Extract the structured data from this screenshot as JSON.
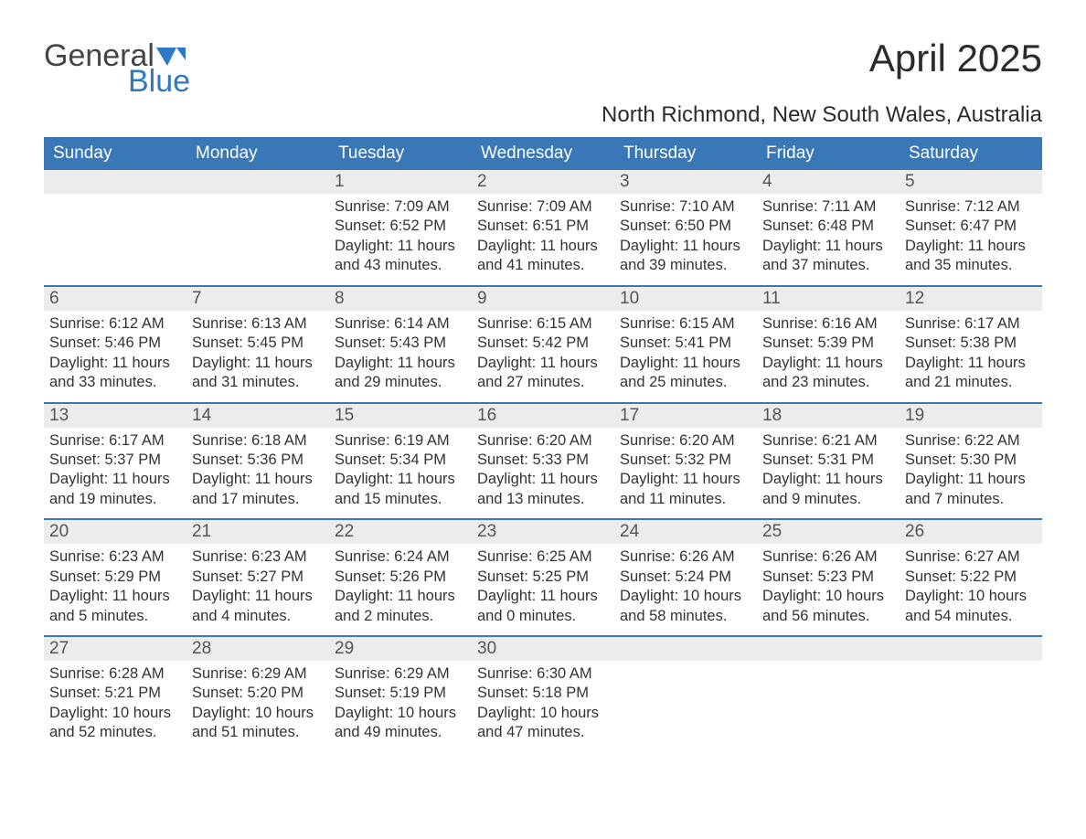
{
  "logo": {
    "general": "General",
    "blue": "Blue"
  },
  "title": "April 2025",
  "subtitle": "North Richmond, New South Wales, Australia",
  "dayNames": [
    "Sunday",
    "Monday",
    "Tuesday",
    "Wednesday",
    "Thursday",
    "Friday",
    "Saturday"
  ],
  "colors": {
    "headerBg": "#3a77b6",
    "headerFg": "#ffffff",
    "dateBarBg": "#ececec",
    "rowBorder": "#3a77b6",
    "logoBlue": "#2f78c4",
    "textColor": "#333333"
  },
  "weeks": [
    [
      null,
      null,
      {
        "date": "1",
        "sunrise": "Sunrise: 7:09 AM",
        "sunset": "Sunset: 6:52 PM",
        "daylight": "Daylight: 11 hours and 43 minutes."
      },
      {
        "date": "2",
        "sunrise": "Sunrise: 7:09 AM",
        "sunset": "Sunset: 6:51 PM",
        "daylight": "Daylight: 11 hours and 41 minutes."
      },
      {
        "date": "3",
        "sunrise": "Sunrise: 7:10 AM",
        "sunset": "Sunset: 6:50 PM",
        "daylight": "Daylight: 11 hours and 39 minutes."
      },
      {
        "date": "4",
        "sunrise": "Sunrise: 7:11 AM",
        "sunset": "Sunset: 6:48 PM",
        "daylight": "Daylight: 11 hours and 37 minutes."
      },
      {
        "date": "5",
        "sunrise": "Sunrise: 7:12 AM",
        "sunset": "Sunset: 6:47 PM",
        "daylight": "Daylight: 11 hours and 35 minutes."
      }
    ],
    [
      {
        "date": "6",
        "sunrise": "Sunrise: 6:12 AM",
        "sunset": "Sunset: 5:46 PM",
        "daylight": "Daylight: 11 hours and 33 minutes."
      },
      {
        "date": "7",
        "sunrise": "Sunrise: 6:13 AM",
        "sunset": "Sunset: 5:45 PM",
        "daylight": "Daylight: 11 hours and 31 minutes."
      },
      {
        "date": "8",
        "sunrise": "Sunrise: 6:14 AM",
        "sunset": "Sunset: 5:43 PM",
        "daylight": "Daylight: 11 hours and 29 minutes."
      },
      {
        "date": "9",
        "sunrise": "Sunrise: 6:15 AM",
        "sunset": "Sunset: 5:42 PM",
        "daylight": "Daylight: 11 hours and 27 minutes."
      },
      {
        "date": "10",
        "sunrise": "Sunrise: 6:15 AM",
        "sunset": "Sunset: 5:41 PM",
        "daylight": "Daylight: 11 hours and 25 minutes."
      },
      {
        "date": "11",
        "sunrise": "Sunrise: 6:16 AM",
        "sunset": "Sunset: 5:39 PM",
        "daylight": "Daylight: 11 hours and 23 minutes."
      },
      {
        "date": "12",
        "sunrise": "Sunrise: 6:17 AM",
        "sunset": "Sunset: 5:38 PM",
        "daylight": "Daylight: 11 hours and 21 minutes."
      }
    ],
    [
      {
        "date": "13",
        "sunrise": "Sunrise: 6:17 AM",
        "sunset": "Sunset: 5:37 PM",
        "daylight": "Daylight: 11 hours and 19 minutes."
      },
      {
        "date": "14",
        "sunrise": "Sunrise: 6:18 AM",
        "sunset": "Sunset: 5:36 PM",
        "daylight": "Daylight: 11 hours and 17 minutes."
      },
      {
        "date": "15",
        "sunrise": "Sunrise: 6:19 AM",
        "sunset": "Sunset: 5:34 PM",
        "daylight": "Daylight: 11 hours and 15 minutes."
      },
      {
        "date": "16",
        "sunrise": "Sunrise: 6:20 AM",
        "sunset": "Sunset: 5:33 PM",
        "daylight": "Daylight: 11 hours and 13 minutes."
      },
      {
        "date": "17",
        "sunrise": "Sunrise: 6:20 AM",
        "sunset": "Sunset: 5:32 PM",
        "daylight": "Daylight: 11 hours and 11 minutes."
      },
      {
        "date": "18",
        "sunrise": "Sunrise: 6:21 AM",
        "sunset": "Sunset: 5:31 PM",
        "daylight": "Daylight: 11 hours and 9 minutes."
      },
      {
        "date": "19",
        "sunrise": "Sunrise: 6:22 AM",
        "sunset": "Sunset: 5:30 PM",
        "daylight": "Daylight: 11 hours and 7 minutes."
      }
    ],
    [
      {
        "date": "20",
        "sunrise": "Sunrise: 6:23 AM",
        "sunset": "Sunset: 5:29 PM",
        "daylight": "Daylight: 11 hours and 5 minutes."
      },
      {
        "date": "21",
        "sunrise": "Sunrise: 6:23 AM",
        "sunset": "Sunset: 5:27 PM",
        "daylight": "Daylight: 11 hours and 4 minutes."
      },
      {
        "date": "22",
        "sunrise": "Sunrise: 6:24 AM",
        "sunset": "Sunset: 5:26 PM",
        "daylight": "Daylight: 11 hours and 2 minutes."
      },
      {
        "date": "23",
        "sunrise": "Sunrise: 6:25 AM",
        "sunset": "Sunset: 5:25 PM",
        "daylight": "Daylight: 11 hours and 0 minutes."
      },
      {
        "date": "24",
        "sunrise": "Sunrise: 6:26 AM",
        "sunset": "Sunset: 5:24 PM",
        "daylight": "Daylight: 10 hours and 58 minutes."
      },
      {
        "date": "25",
        "sunrise": "Sunrise: 6:26 AM",
        "sunset": "Sunset: 5:23 PM",
        "daylight": "Daylight: 10 hours and 56 minutes."
      },
      {
        "date": "26",
        "sunrise": "Sunrise: 6:27 AM",
        "sunset": "Sunset: 5:22 PM",
        "daylight": "Daylight: 10 hours and 54 minutes."
      }
    ],
    [
      {
        "date": "27",
        "sunrise": "Sunrise: 6:28 AM",
        "sunset": "Sunset: 5:21 PM",
        "daylight": "Daylight: 10 hours and 52 minutes."
      },
      {
        "date": "28",
        "sunrise": "Sunrise: 6:29 AM",
        "sunset": "Sunset: 5:20 PM",
        "daylight": "Daylight: 10 hours and 51 minutes."
      },
      {
        "date": "29",
        "sunrise": "Sunrise: 6:29 AM",
        "sunset": "Sunset: 5:19 PM",
        "daylight": "Daylight: 10 hours and 49 minutes."
      },
      {
        "date": "30",
        "sunrise": "Sunrise: 6:30 AM",
        "sunset": "Sunset: 5:18 PM",
        "daylight": "Daylight: 10 hours and 47 minutes."
      },
      null,
      null,
      null
    ]
  ]
}
